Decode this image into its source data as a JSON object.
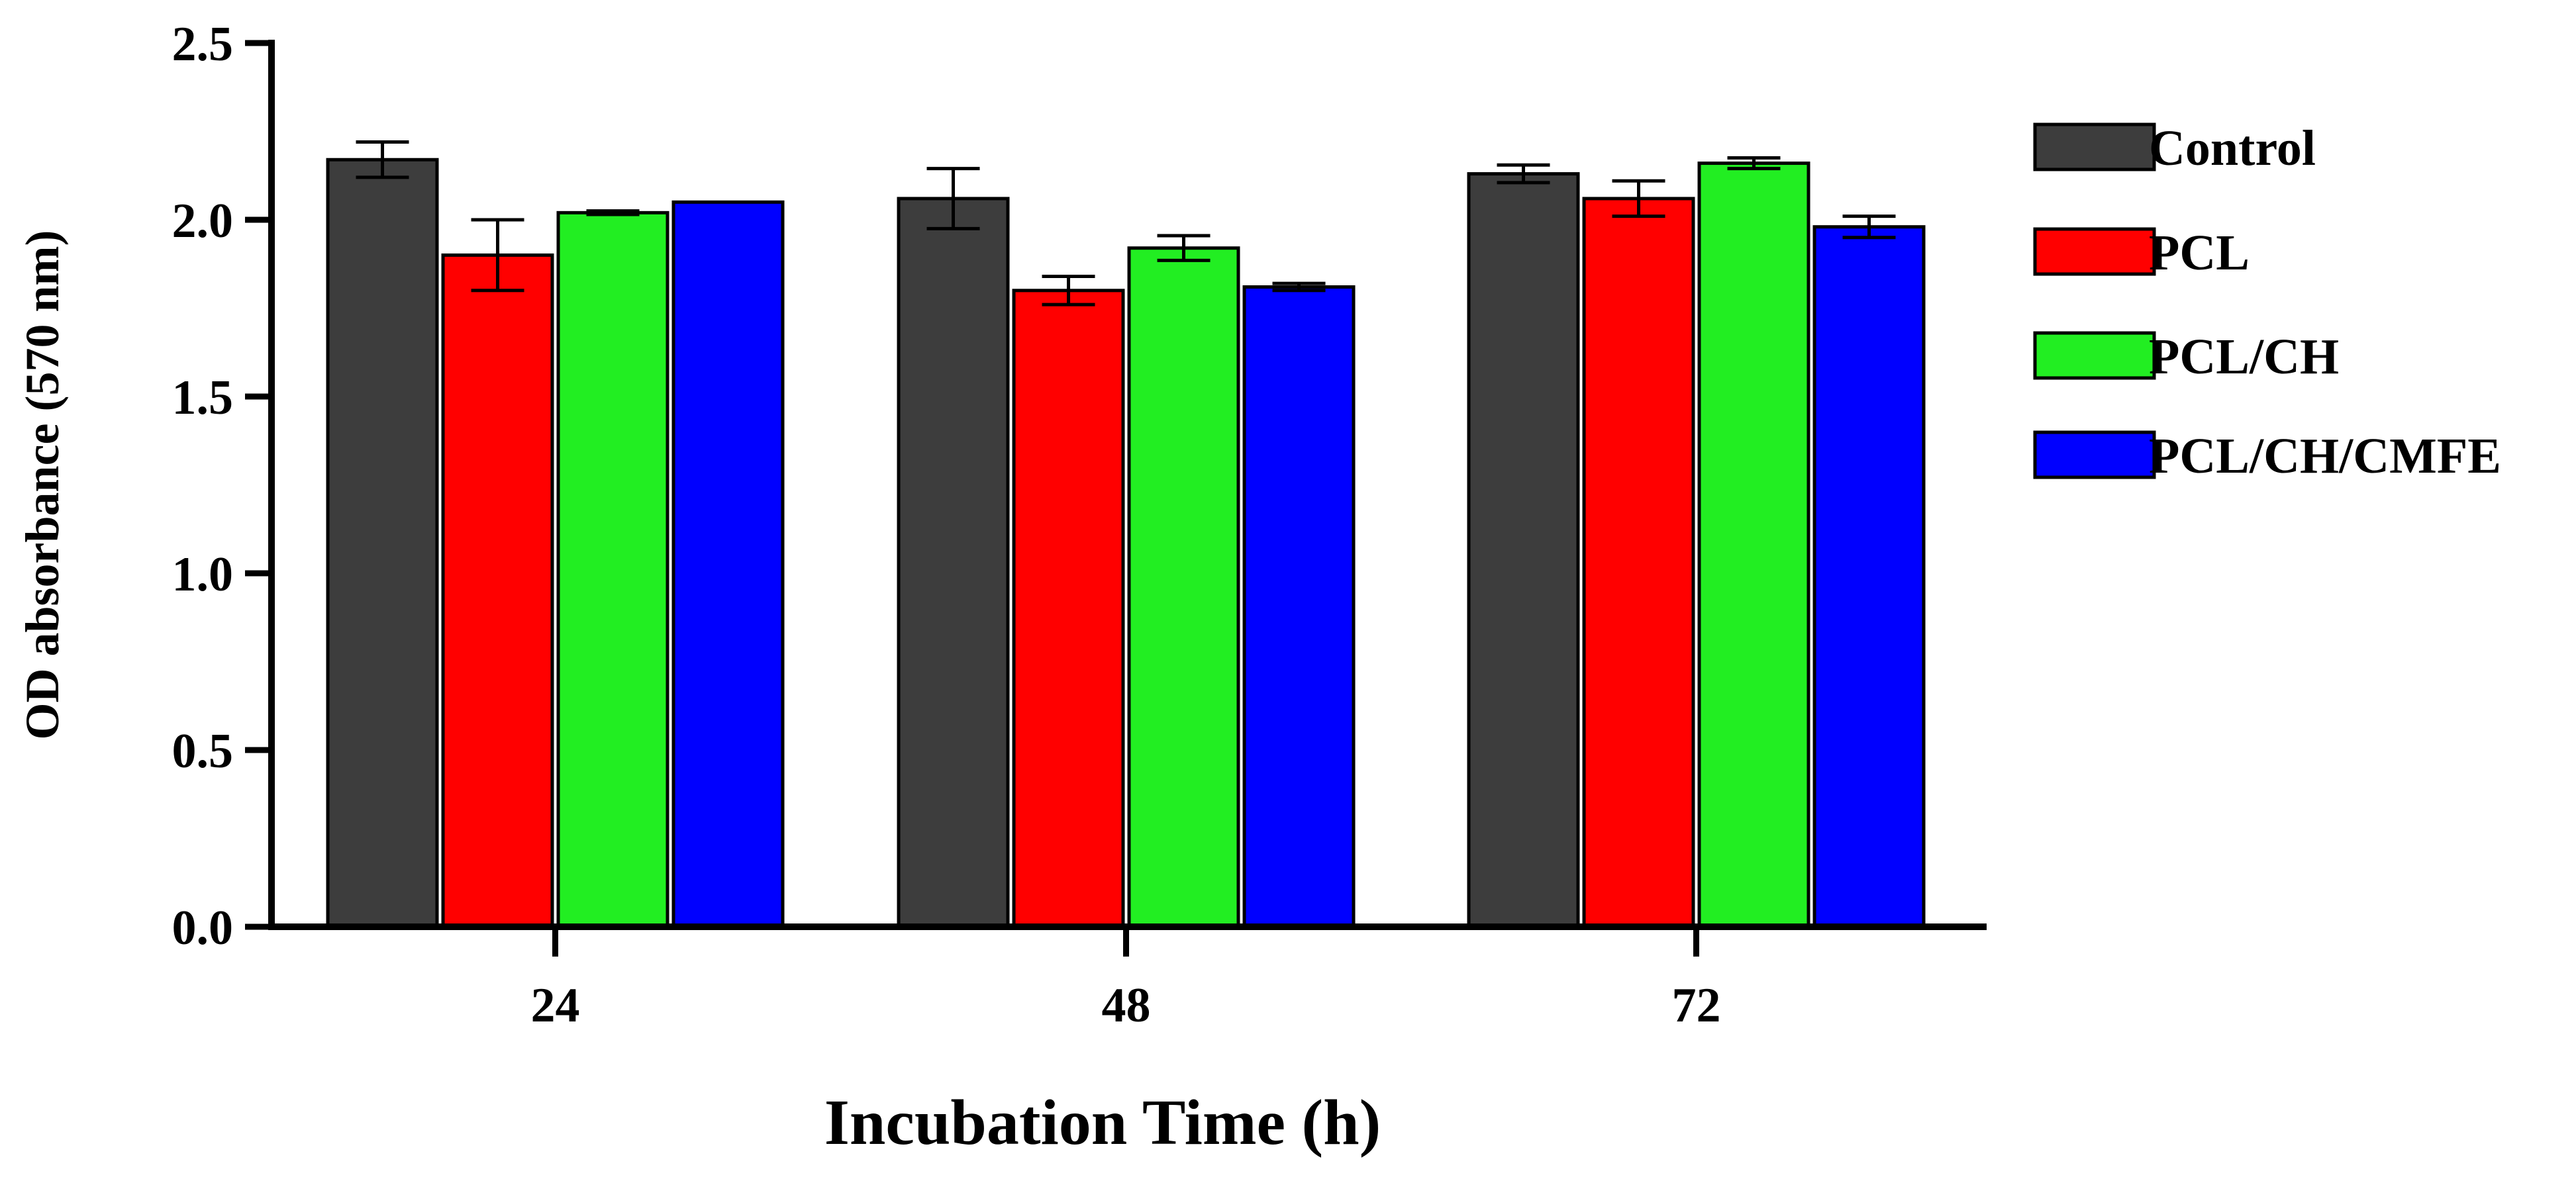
{
  "chart_data": {
    "type": "bar",
    "title": "",
    "xlabel": "Incubation Time (h)",
    "ylabel": "OD absorbance (570 nm)",
    "categories": [
      "24",
      "48",
      "72"
    ],
    "ylim": [
      0,
      2.5
    ],
    "yticks": [
      "0.0",
      "0.5",
      "1.0",
      "1.5",
      "2.0",
      "2.5"
    ],
    "ytick_values": [
      0,
      0.5,
      1.0,
      1.5,
      2.0,
      2.5
    ],
    "legend_position": "right",
    "series": [
      {
        "name": "Control",
        "color": "#3d3d3d",
        "values": [
          2.17,
          2.06,
          2.13
        ],
        "errors": [
          0.05,
          0.085,
          0.025
        ]
      },
      {
        "name": "PCL",
        "color": "#ff0000",
        "values": [
          1.9,
          1.8,
          2.06
        ],
        "errors": [
          0.1,
          0.04,
          0.05
        ]
      },
      {
        "name": "PCL/CH",
        "color": "#22ee22",
        "values": [
          2.02,
          1.92,
          2.16
        ],
        "errors": [
          0.005,
          0.035,
          0.015
        ]
      },
      {
        "name": "PCL/CH/CMFE",
        "color": "#0000ff",
        "values": [
          2.05,
          1.81,
          1.98
        ],
        "errors": [
          0.0,
          0.01,
          0.03
        ]
      }
    ]
  }
}
